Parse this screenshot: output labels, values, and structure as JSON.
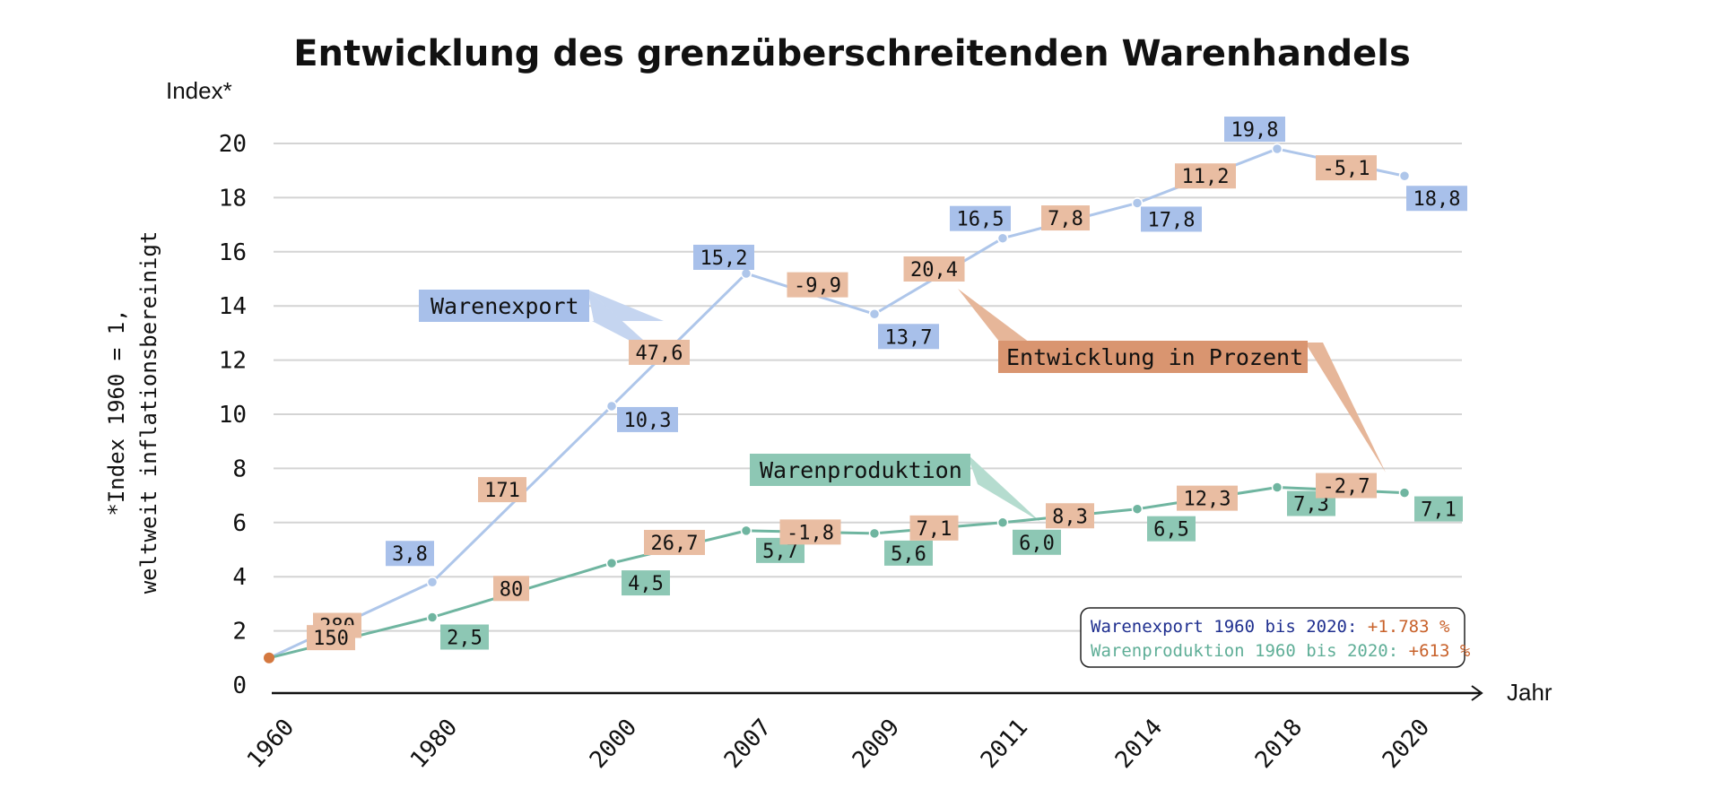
{
  "chart_data": {
    "type": "line",
    "title": "Entwicklung des grenzüberschreitenden Warenhandels",
    "ylabel": "Index*",
    "xlabel": "Jahr",
    "footnote": [
      "*Index 1960 = 1,",
      "weltweit inflationsbereinigt"
    ],
    "ylim": [
      0,
      20
    ],
    "yticks": [
      0,
      2,
      4,
      6,
      8,
      10,
      12,
      14,
      16,
      18,
      20
    ],
    "ytick_labels": [
      "0",
      "2",
      "4",
      "6",
      "8",
      "10",
      "12",
      "14",
      "16",
      "18",
      "20"
    ],
    "grid": true,
    "categories": [
      "1960",
      "1980",
      "2000",
      "2007",
      "2009",
      "2011",
      "2014",
      "2018",
      "2020"
    ],
    "series": [
      {
        "name": "Warenexport",
        "color": "#aec6ea",
        "label_color": "#a8c0ea",
        "values": [
          1.0,
          3.8,
          10.3,
          15.2,
          13.7,
          16.5,
          17.8,
          19.8,
          18.8
        ],
        "value_labels": [
          "",
          "3,8",
          "10,3",
          "15,2",
          "13,7",
          "16,5",
          "17,8",
          "19,8",
          "18,8"
        ],
        "percent_changes": [
          "280",
          "171",
          "47,6",
          "-9,9",
          "20,4",
          "7,8",
          "11,2",
          "-5,1"
        ]
      },
      {
        "name": "Warenproduktion",
        "color": "#6fb5a0",
        "label_color": "#8dc7b4",
        "values": [
          1.0,
          2.5,
          4.5,
          5.7,
          5.6,
          6.0,
          6.5,
          7.3,
          7.1
        ],
        "value_labels": [
          "",
          "2,5",
          "4,5",
          "5,7",
          "5,6",
          "6,0",
          "6,5",
          "7,3",
          "7,1"
        ],
        "percent_changes": [
          "150",
          "80",
          "26,7",
          "-1,8",
          "7,1",
          "8,3",
          "12,3",
          "-2,7"
        ]
      }
    ],
    "annotations": {
      "series_callouts": [
        "Warenexport",
        "Warenproduktion"
      ],
      "percent_callout": "Entwicklung in Prozent"
    },
    "summary_box": {
      "lines": [
        {
          "label": "Warenexport 1960 bis 2020:",
          "value": "+1.783 %",
          "color": "#1f2f8f"
        },
        {
          "label": "Warenproduktion 1960 bis 2020:",
          "value": "+613 %",
          "color": "#5fae97"
        }
      ],
      "value_color": "#c8612a",
      "placement": "bottom-right"
    },
    "colors": {
      "percent_box": "#e9bda2",
      "percent_callout": "#d99570",
      "grid": "#d4d4d4",
      "origin_point": "#d4783f"
    }
  }
}
